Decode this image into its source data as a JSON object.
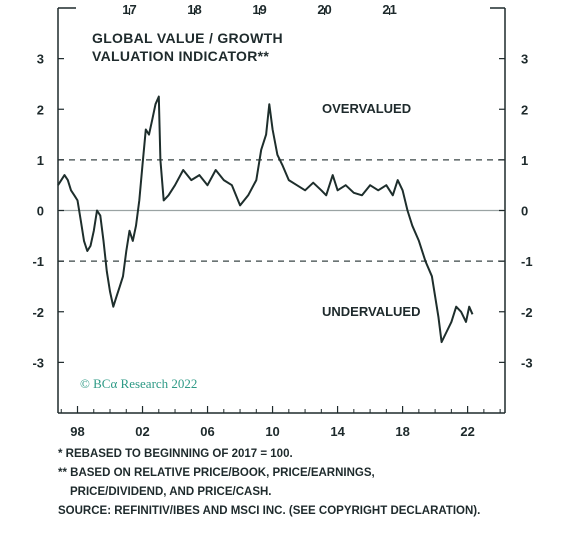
{
  "chart_data": {
    "type": "line",
    "title": "GLOBAL VALUE / GROWTH\nVALUATION INDICATOR**",
    "title_lines": [
      "GLOBAL VALUE / GROWTH",
      "VALUATION INDICATOR**"
    ],
    "xlabel": "",
    "ylabel": "",
    "xlim": [
      1996.8,
      2024.3
    ],
    "ylim": [
      -4,
      4
    ],
    "bottom_ticks": [
      "98",
      "02",
      "06",
      "10",
      "14",
      "18",
      "22"
    ],
    "bottom_tick_values": [
      1998,
      2002,
      2006,
      2010,
      2014,
      2018,
      2022
    ],
    "top_ticks": [
      "17",
      "18",
      "19",
      "20",
      "21"
    ],
    "top_tick_values": [
      2001.2,
      2005.2,
      2009.2,
      2013.2,
      2017.2
    ],
    "y_ticks": [
      "3",
      "2",
      "1",
      "0",
      "-1",
      "-2",
      "-3"
    ],
    "y_tick_values": [
      3,
      2,
      1,
      0,
      -1,
      -2,
      -3
    ],
    "reference_lines": [
      {
        "y": 1,
        "style": "dashed"
      },
      {
        "y": 0,
        "style": "solid"
      },
      {
        "y": -1,
        "style": "dashed"
      }
    ],
    "annotations": [
      {
        "text": "OVERVALUED",
        "x": 2011.5,
        "y": 2.0
      },
      {
        "text": "UNDERVALUED",
        "x": 2011.5,
        "y": -2.0
      }
    ],
    "series": [
      {
        "color": "#1e2e2c",
        "points": [
          [
            1996.8,
            0.5
          ],
          [
            1997.0,
            0.6
          ],
          [
            1997.2,
            0.7
          ],
          [
            1997.4,
            0.6
          ],
          [
            1997.6,
            0.4
          ],
          [
            1997.8,
            0.3
          ],
          [
            1998.0,
            0.2
          ],
          [
            1998.2,
            -0.2
          ],
          [
            1998.4,
            -0.6
          ],
          [
            1998.6,
            -0.8
          ],
          [
            1998.8,
            -0.7
          ],
          [
            1999.0,
            -0.4
          ],
          [
            1999.2,
            0.0
          ],
          [
            1999.4,
            -0.1
          ],
          [
            1999.6,
            -0.6
          ],
          [
            1999.8,
            -1.2
          ],
          [
            2000.0,
            -1.6
          ],
          [
            2000.2,
            -1.9
          ],
          [
            2000.4,
            -1.7
          ],
          [
            2000.6,
            -1.5
          ],
          [
            2000.8,
            -1.3
          ],
          [
            2001.0,
            -0.8
          ],
          [
            2001.2,
            -0.4
          ],
          [
            2001.4,
            -0.6
          ],
          [
            2001.6,
            -0.3
          ],
          [
            2001.8,
            0.2
          ],
          [
            2002.0,
            0.9
          ],
          [
            2002.2,
            1.6
          ],
          [
            2002.4,
            1.5
          ],
          [
            2002.6,
            1.8
          ],
          [
            2002.8,
            2.1
          ],
          [
            2003.0,
            2.25
          ],
          [
            2003.1,
            1.0
          ],
          [
            2003.3,
            0.2
          ],
          [
            2003.6,
            0.3
          ],
          [
            2004.0,
            0.5
          ],
          [
            2004.5,
            0.8
          ],
          [
            2005.0,
            0.6
          ],
          [
            2005.5,
            0.7
          ],
          [
            2006.0,
            0.5
          ],
          [
            2006.5,
            0.8
          ],
          [
            2007.0,
            0.6
          ],
          [
            2007.5,
            0.5
          ],
          [
            2008.0,
            0.1
          ],
          [
            2008.5,
            0.3
          ],
          [
            2009.0,
            0.6
          ],
          [
            2009.3,
            1.2
          ],
          [
            2009.6,
            1.5
          ],
          [
            2009.8,
            2.1
          ],
          [
            2010.0,
            1.6
          ],
          [
            2010.3,
            1.1
          ],
          [
            2010.6,
            0.9
          ],
          [
            2011.0,
            0.6
          ],
          [
            2011.5,
            0.5
          ],
          [
            2012.0,
            0.4
          ],
          [
            2012.5,
            0.55
          ],
          [
            2013.0,
            0.4
          ],
          [
            2013.3,
            0.3
          ],
          [
            2013.7,
            0.7
          ],
          [
            2014.0,
            0.4
          ],
          [
            2014.5,
            0.5
          ],
          [
            2015.0,
            0.35
          ],
          [
            2015.5,
            0.3
          ],
          [
            2016.0,
            0.5
          ],
          [
            2016.5,
            0.4
          ],
          [
            2017.0,
            0.5
          ],
          [
            2017.4,
            0.3
          ],
          [
            2017.7,
            0.6
          ],
          [
            2018.0,
            0.4
          ],
          [
            2018.3,
            0.0
          ],
          [
            2018.6,
            -0.3
          ],
          [
            2019.0,
            -0.6
          ],
          [
            2019.4,
            -1.0
          ],
          [
            2019.8,
            -1.3
          ],
          [
            2020.2,
            -2.1
          ],
          [
            2020.4,
            -2.6
          ],
          [
            2020.7,
            -2.4
          ],
          [
            2021.0,
            -2.2
          ],
          [
            2021.3,
            -1.9
          ],
          [
            2021.6,
            -2.0
          ],
          [
            2021.9,
            -2.2
          ],
          [
            2022.1,
            -1.9
          ],
          [
            2022.3,
            -2.05
          ]
        ]
      }
    ],
    "grid": false,
    "legend": "none"
  },
  "brand": {
    "prefix": "© BC",
    "alpha": "α",
    "suffix": " Research 2022"
  },
  "footnotes": [
    "*  REBASED TO BEGINNING OF 2017 = 100.",
    "** BASED ON RELATIVE PRICE/BOOK, PRICE/EARNINGS,",
    "PRICE/DIVIDEND, AND PRICE/CASH.",
    "SOURCE: REFINITIV/IBES AND MSCI INC. (SEE COPYRIGHT DECLARATION)."
  ]
}
